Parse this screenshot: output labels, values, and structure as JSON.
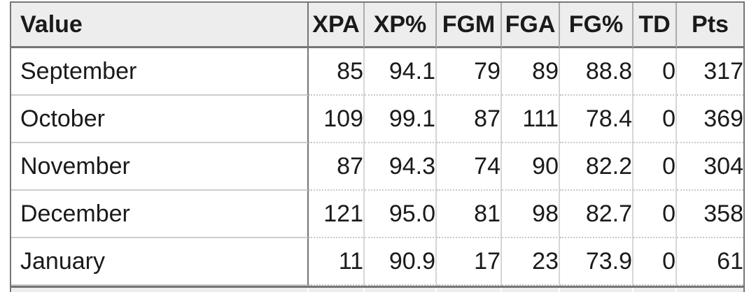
{
  "table": {
    "columns": [
      "Value",
      "XPA",
      "XP%",
      "FGM",
      "FGA",
      "FG%",
      "TD",
      "Pts"
    ],
    "rows": [
      {
        "label": "September",
        "values": [
          "85",
          "94.1",
          "79",
          "89",
          "88.8",
          "0",
          "317"
        ]
      },
      {
        "label": "October",
        "values": [
          "109",
          "99.1",
          "87",
          "111",
          "78.4",
          "0",
          "369"
        ]
      },
      {
        "label": "November",
        "values": [
          "87",
          "94.3",
          "74",
          "90",
          "82.2",
          "0",
          "304"
        ]
      },
      {
        "label": "December",
        "values": [
          "121",
          "95.0",
          "81",
          "98",
          "82.7",
          "0",
          "358"
        ]
      },
      {
        "label": "January",
        "values": [
          "11",
          "90.9",
          "17",
          "23",
          "73.9",
          "0",
          "61"
        ]
      }
    ]
  }
}
